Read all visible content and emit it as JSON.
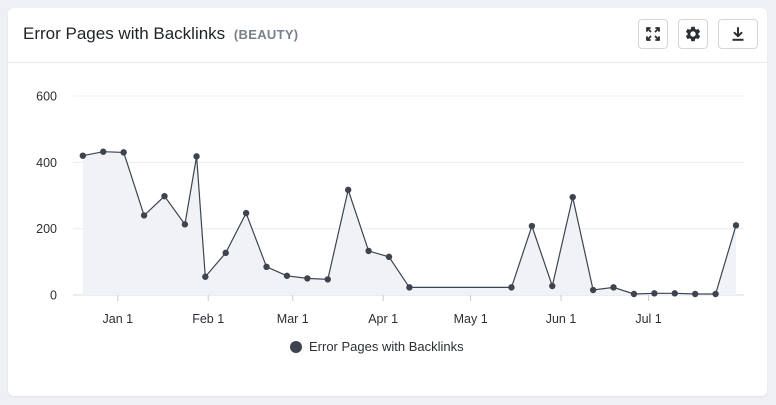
{
  "panel": {
    "title": "Error Pages with Backlinks",
    "subtitle": "(BEAUTY)"
  },
  "toolbar": {
    "expand_icon": "expand-icon",
    "settings_icon": "gear-icon",
    "download_icon": "download-icon"
  },
  "colors": {
    "series": "#3d4450",
    "area": "#f1f2f5",
    "grid": "#ececef"
  },
  "chart_data": {
    "type": "area",
    "title": "",
    "xlabel": "",
    "ylabel": "",
    "ylim": [
      0,
      600
    ],
    "y_ticks": [
      0,
      200,
      400,
      600
    ],
    "x_ticks": [
      {
        "label": "Jan 1",
        "date": "2024-01-01"
      },
      {
        "label": "Feb 1",
        "date": "2024-02-01"
      },
      {
        "label": "Mar 1",
        "date": "2024-03-01"
      },
      {
        "label": "Apr 1",
        "date": "2024-04-01"
      },
      {
        "label": "May 1",
        "date": "2024-05-01"
      },
      {
        "label": "Jun 1",
        "date": "2024-06-01"
      },
      {
        "label": "Jul 1",
        "date": "2024-07-01"
      }
    ],
    "x_range": [
      "2023-12-18",
      "2024-07-31"
    ],
    "grid": true,
    "legend": "bottom-center",
    "series": [
      {
        "name": "Error Pages with Backlinks",
        "points": [
          {
            "x": "2023-12-20",
            "y": 420
          },
          {
            "x": "2023-12-27",
            "y": 432
          },
          {
            "x": "2024-01-03",
            "y": 430
          },
          {
            "x": "2024-01-10",
            "y": 240
          },
          {
            "x": "2024-01-17",
            "y": 298
          },
          {
            "x": "2024-01-24",
            "y": 213
          },
          {
            "x": "2024-01-28",
            "y": 418
          },
          {
            "x": "2024-01-31",
            "y": 55
          },
          {
            "x": "2024-02-07",
            "y": 127
          },
          {
            "x": "2024-02-14",
            "y": 247
          },
          {
            "x": "2024-02-21",
            "y": 85
          },
          {
            "x": "2024-02-28",
            "y": 58
          },
          {
            "x": "2024-03-06",
            "y": 50
          },
          {
            "x": "2024-03-13",
            "y": 47
          },
          {
            "x": "2024-03-20",
            "y": 317
          },
          {
            "x": "2024-03-27",
            "y": 133
          },
          {
            "x": "2024-04-03",
            "y": 115
          },
          {
            "x": "2024-04-10",
            "y": 23
          },
          {
            "x": "2024-05-15",
            "y": 23
          },
          {
            "x": "2024-05-22",
            "y": 208
          },
          {
            "x": "2024-05-29",
            "y": 27
          },
          {
            "x": "2024-06-05",
            "y": 295
          },
          {
            "x": "2024-06-12",
            "y": 15
          },
          {
            "x": "2024-06-19",
            "y": 23
          },
          {
            "x": "2024-06-26",
            "y": 3
          },
          {
            "x": "2024-07-03",
            "y": 5
          },
          {
            "x": "2024-07-10",
            "y": 5
          },
          {
            "x": "2024-07-17",
            "y": 3
          },
          {
            "x": "2024-07-24",
            "y": 3
          },
          {
            "x": "2024-07-31",
            "y": 210
          }
        ]
      }
    ]
  }
}
